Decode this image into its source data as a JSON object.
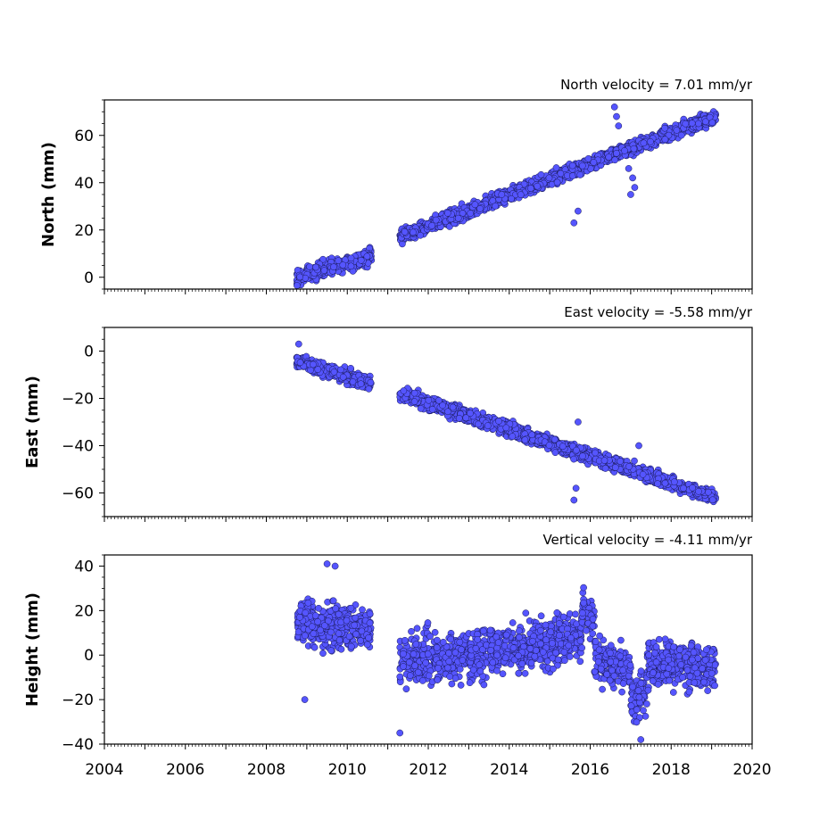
{
  "chart_data": [
    {
      "type": "scatter",
      "title": "North velocity = 7.01 mm/yr",
      "ylabel": "North (mm)",
      "xlabel": "",
      "xlim": [
        2004,
        2020
      ],
      "ylim": [
        -5,
        75
      ],
      "yticks": [
        0,
        20,
        40,
        60
      ],
      "grid": false,
      "marker_color": "#5555ff",
      "segments": [
        {
          "x_start": 2008.75,
          "x_end": 2010.6,
          "y_start": 0,
          "y_end": 9,
          "spread": 3
        },
        {
          "x_start": 2011.3,
          "x_end": 2016.6,
          "y_start": 17,
          "y_end": 52,
          "spread": 2.5
        },
        {
          "x_start": 2016.6,
          "x_end": 2019.1,
          "y_start": 52,
          "y_end": 68,
          "spread": 2.5
        }
      ],
      "outliers": [
        {
          "x": 2015.6,
          "y": 23
        },
        {
          "x": 2015.7,
          "y": 28
        },
        {
          "x": 2016.6,
          "y": 72
        },
        {
          "x": 2016.65,
          "y": 68
        },
        {
          "x": 2016.7,
          "y": 64
        },
        {
          "x": 2016.95,
          "y": 46
        },
        {
          "x": 2017.05,
          "y": 42
        },
        {
          "x": 2017.1,
          "y": 38
        },
        {
          "x": 2017.0,
          "y": 35
        }
      ]
    },
    {
      "type": "scatter",
      "title": "East velocity = -5.58 mm/yr",
      "ylabel": "East (mm)",
      "xlabel": "",
      "xlim": [
        2004,
        2020
      ],
      "ylim": [
        -70,
        10
      ],
      "yticks": [
        0,
        -20,
        -40,
        -60
      ],
      "ytick_labels": [
        "0",
        "−20",
        "−40",
        "−60"
      ],
      "grid": false,
      "marker_color": "#5555ff",
      "segments": [
        {
          "x_start": 2008.75,
          "x_end": 2010.6,
          "y_start": -4,
          "y_end": -14,
          "spread": 2.5
        },
        {
          "x_start": 2011.3,
          "x_end": 2019.1,
          "y_start": -18,
          "y_end": -62,
          "spread": 2.5
        }
      ],
      "outliers": [
        {
          "x": 2008.8,
          "y": 3
        },
        {
          "x": 2015.6,
          "y": -63
        },
        {
          "x": 2015.65,
          "y": -58
        },
        {
          "x": 2015.7,
          "y": -30
        },
        {
          "x": 2017.2,
          "y": -40
        }
      ]
    },
    {
      "type": "scatter",
      "title": "Vertical velocity = -4.11 mm/yr",
      "ylabel": "Height (mm)",
      "xlabel": "",
      "xlim": [
        2004,
        2020
      ],
      "ylim": [
        -40,
        45
      ],
      "yticks": [
        -40,
        -20,
        0,
        20,
        40
      ],
      "ytick_labels": [
        "−40",
        "−20",
        "0",
        "20",
        "40"
      ],
      "xticks": [
        2004,
        2006,
        2008,
        2010,
        2012,
        2014,
        2016,
        2018,
        2020
      ],
      "grid": false,
      "marker_color": "#5555ff",
      "segments": [
        {
          "x_start": 2008.75,
          "x_end": 2010.6,
          "y_start": 14,
          "y_end": 12,
          "spread": 9
        },
        {
          "x_start": 2011.3,
          "x_end": 2013.0,
          "y_start": -2,
          "y_end": 0,
          "spread": 10
        },
        {
          "x_start": 2013.0,
          "x_end": 2015.8,
          "y_start": 0,
          "y_end": 8,
          "spread": 10
        },
        {
          "x_start": 2015.8,
          "x_end": 2016.1,
          "y_start": 22,
          "y_end": 14,
          "spread": 8
        },
        {
          "x_start": 2016.1,
          "x_end": 2017.0,
          "y_start": -2,
          "y_end": -6,
          "spread": 9
        },
        {
          "x_start": 2017.0,
          "x_end": 2017.4,
          "y_start": -22,
          "y_end": -15,
          "spread": 9
        },
        {
          "x_start": 2017.4,
          "x_end": 2019.1,
          "y_start": -4,
          "y_end": -5,
          "spread": 9
        }
      ],
      "outliers": [
        {
          "x": 2009.5,
          "y": 41
        },
        {
          "x": 2009.7,
          "y": 40
        },
        {
          "x": 2008.95,
          "y": -20
        },
        {
          "x": 2011.3,
          "y": -35
        },
        {
          "x": 2017.25,
          "y": -38
        }
      ]
    }
  ]
}
